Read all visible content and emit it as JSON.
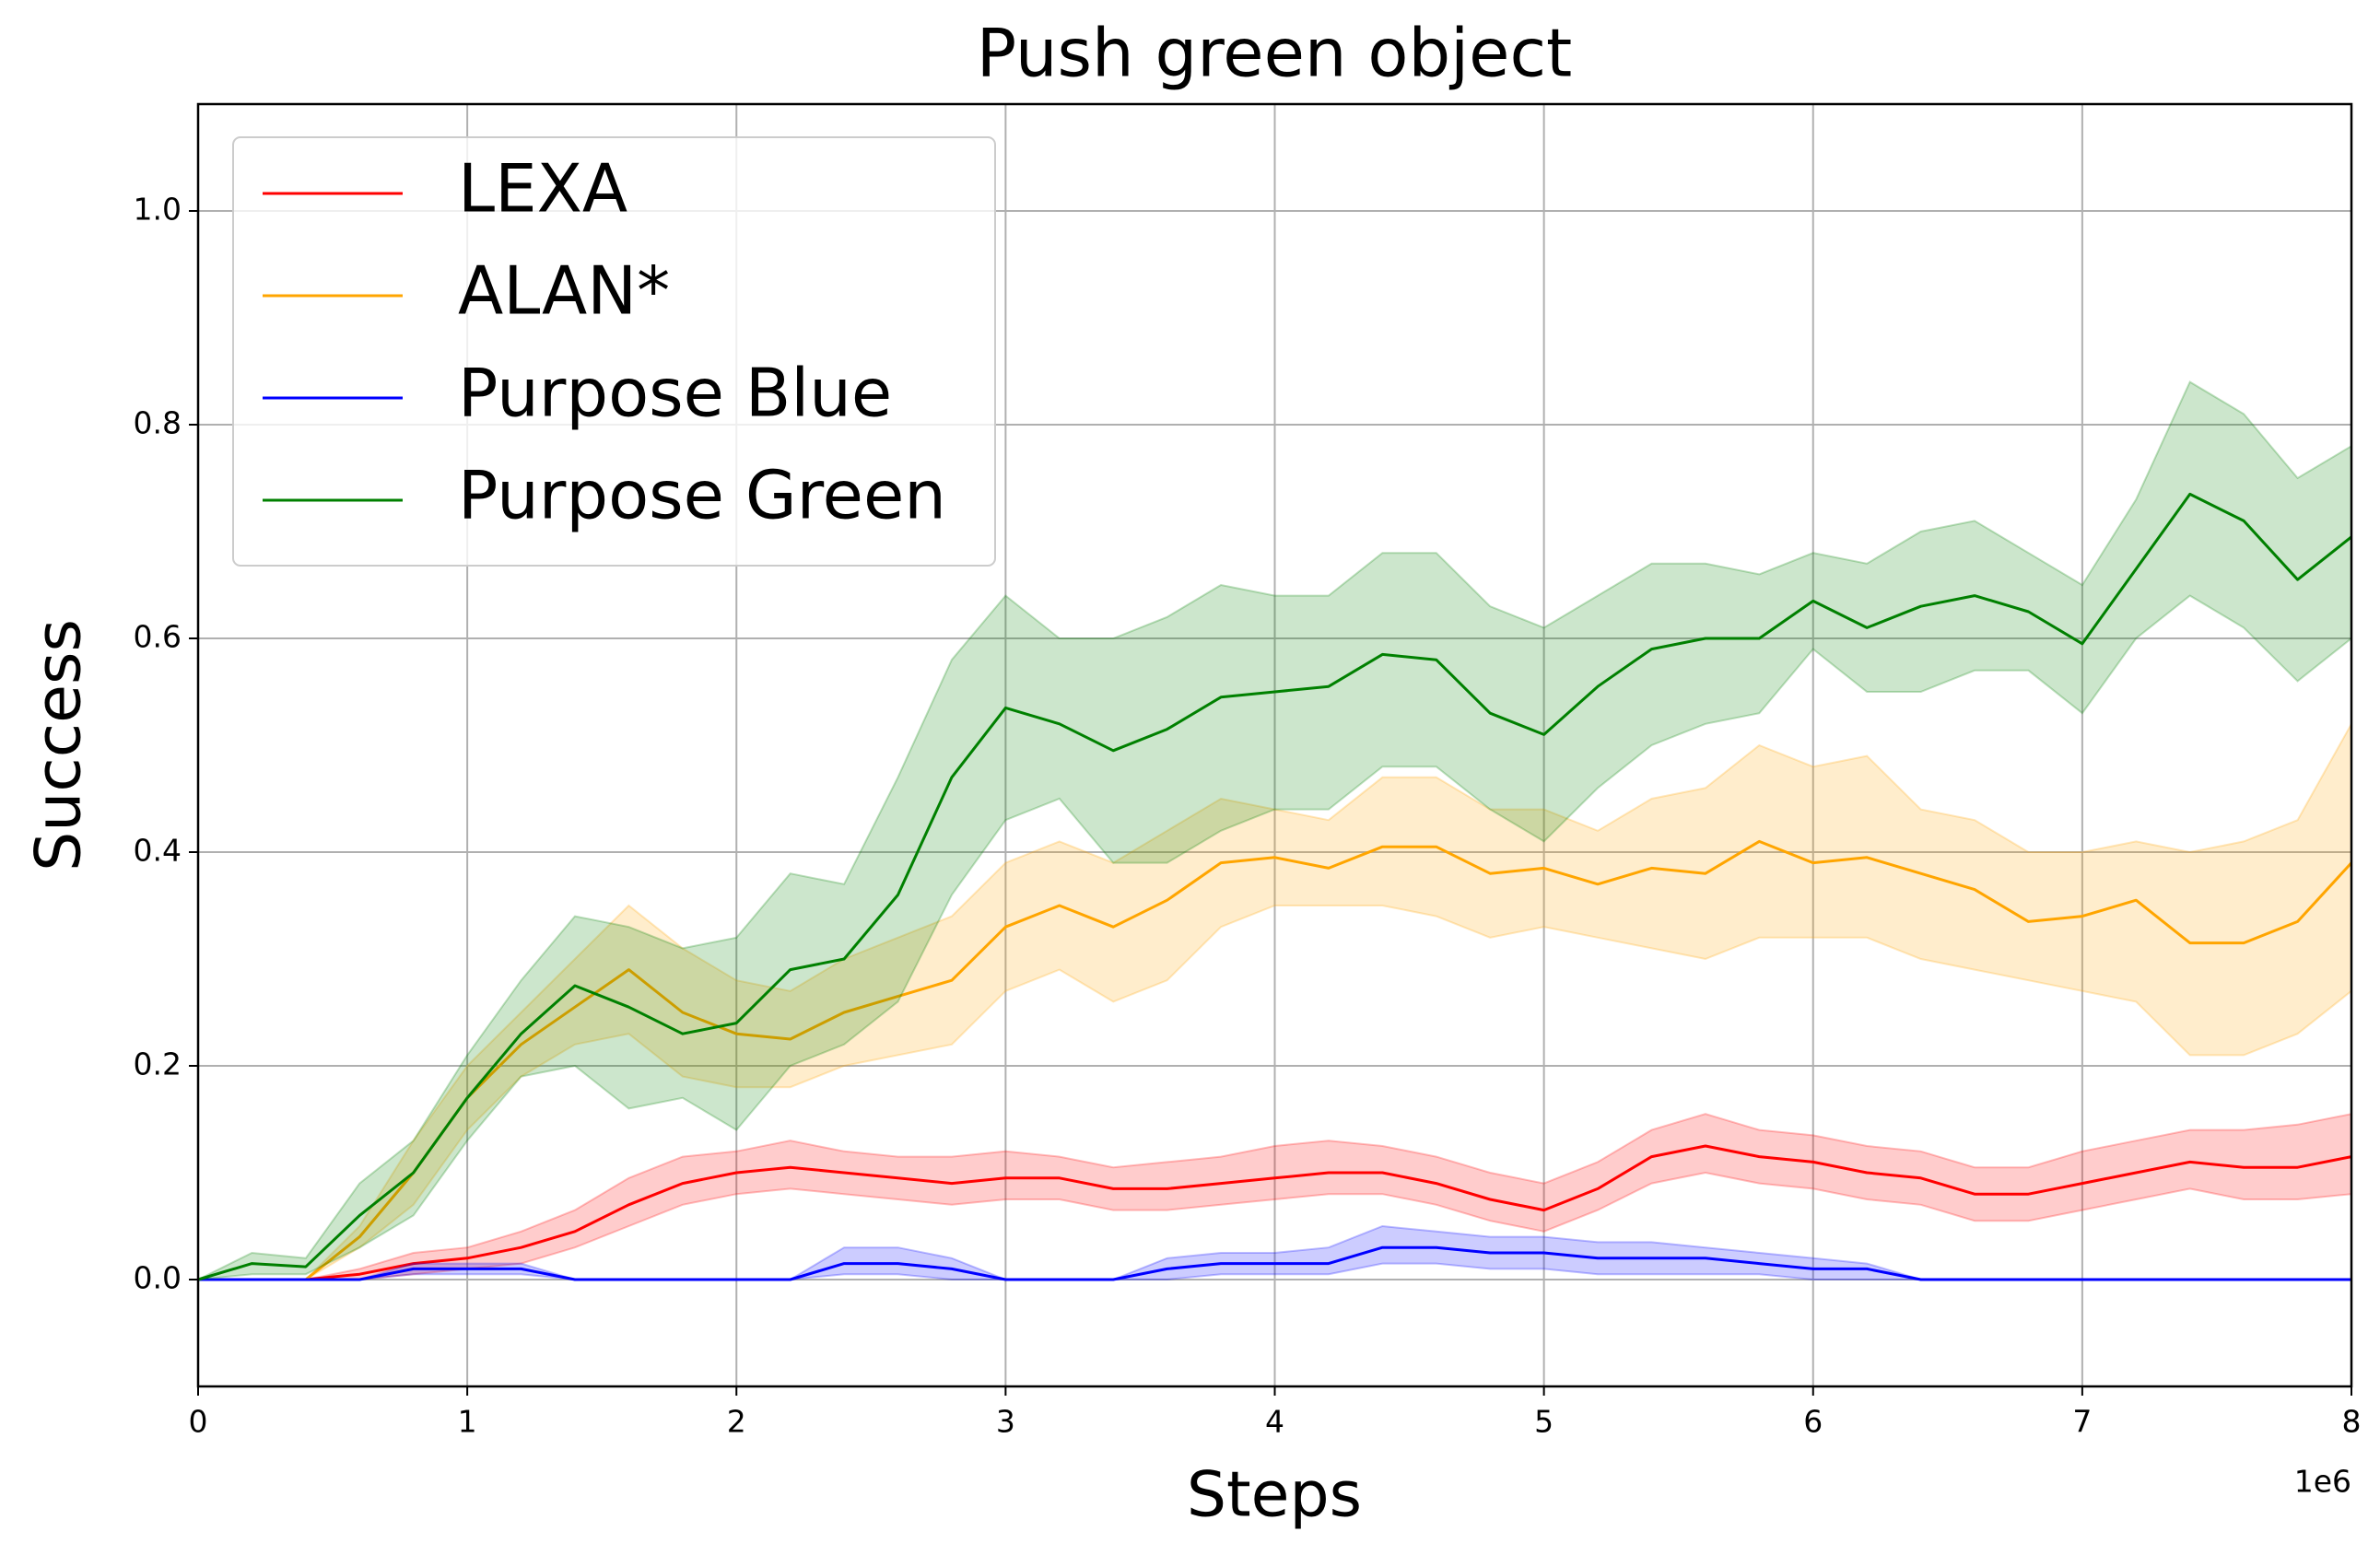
{
  "chart_data": {
    "type": "line",
    "title": "Push green object",
    "xlabel": "Steps",
    "ylabel": "Success",
    "x_offset_label": "1e6",
    "x": [
      0,
      0.2,
      0.4,
      0.6,
      0.8,
      1.0,
      1.2,
      1.4,
      1.6,
      1.8,
      2.0,
      2.2,
      2.4,
      2.6,
      2.8,
      3.0,
      3.2,
      3.4,
      3.6,
      3.8,
      4.0,
      4.2,
      4.4,
      4.6,
      4.8,
      5.0,
      5.2,
      5.4,
      5.6,
      5.8,
      6.0,
      6.2,
      6.4,
      6.6,
      6.8,
      7.0,
      7.2,
      7.4,
      7.6,
      7.8,
      8.0
    ],
    "xlim": [
      0,
      8
    ],
    "xticks": [
      0,
      1,
      2,
      3,
      4,
      5,
      6,
      7,
      8
    ],
    "ylim": [
      -0.1,
      1.1
    ],
    "yticks": [
      {
        "value": 0,
        "label": "0.0"
      },
      0.2,
      0.4,
      0.6,
      0.8,
      {
        "value": 1,
        "label": "1.0"
      }
    ],
    "grid": true,
    "legend": "upper left",
    "series": [
      {
        "name": "LEXA",
        "color": "#ff0000",
        "values": [
          0,
          0,
          0,
          0.005,
          0.015,
          0.02,
          0.03,
          0.045,
          0.07,
          0.09,
          0.1,
          0.105,
          0.1,
          0.095,
          0.09,
          0.095,
          0.095,
          0.085,
          0.085,
          0.09,
          0.095,
          0.1,
          0.1,
          0.09,
          0.075,
          0.065,
          0.085,
          0.115,
          0.125,
          0.115,
          0.11,
          0.1,
          0.095,
          0.08,
          0.08,
          0.09,
          0.1,
          0.11,
          0.105,
          0.105,
          0.115
        ],
        "lower": [
          0,
          0,
          0,
          0,
          0.005,
          0.01,
          0.015,
          0.03,
          0.05,
          0.07,
          0.08,
          0.085,
          0.08,
          0.075,
          0.07,
          0.075,
          0.075,
          0.065,
          0.065,
          0.07,
          0.075,
          0.08,
          0.08,
          0.07,
          0.055,
          0.045,
          0.065,
          0.09,
          0.1,
          0.09,
          0.085,
          0.075,
          0.07,
          0.055,
          0.055,
          0.065,
          0.075,
          0.085,
          0.075,
          0.075,
          0.08
        ],
        "upper": [
          0,
          0,
          0,
          0.01,
          0.025,
          0.03,
          0.045,
          0.065,
          0.095,
          0.115,
          0.12,
          0.13,
          0.12,
          0.115,
          0.115,
          0.12,
          0.115,
          0.105,
          0.11,
          0.115,
          0.125,
          0.13,
          0.125,
          0.115,
          0.1,
          0.09,
          0.11,
          0.14,
          0.155,
          0.14,
          0.135,
          0.125,
          0.12,
          0.105,
          0.105,
          0.12,
          0.13,
          0.14,
          0.14,
          0.145,
          0.155
        ]
      },
      {
        "name": "ALAN*",
        "color": "#ffa500",
        "values": [
          0,
          0,
          0,
          0.04,
          0.1,
          0.17,
          0.22,
          0.255,
          0.29,
          0.25,
          0.23,
          0.225,
          0.25,
          0.265,
          0.28,
          0.33,
          0.35,
          0.33,
          0.355,
          0.39,
          0.395,
          0.385,
          0.405,
          0.405,
          0.38,
          0.385,
          0.37,
          0.385,
          0.38,
          0.41,
          0.39,
          0.395,
          0.38,
          0.365,
          0.335,
          0.34,
          0.355,
          0.315,
          0.315,
          0.335,
          0.39
        ],
        "lower": [
          0,
          0,
          0,
          0.03,
          0.07,
          0.14,
          0.19,
          0.22,
          0.23,
          0.19,
          0.18,
          0.18,
          0.2,
          0.21,
          0.22,
          0.27,
          0.29,
          0.26,
          0.28,
          0.33,
          0.35,
          0.35,
          0.35,
          0.34,
          0.32,
          0.33,
          0.32,
          0.31,
          0.3,
          0.32,
          0.32,
          0.32,
          0.3,
          0.29,
          0.28,
          0.27,
          0.26,
          0.21,
          0.21,
          0.23,
          0.27
        ],
        "upper": [
          0,
          0,
          0,
          0.05,
          0.13,
          0.2,
          0.25,
          0.3,
          0.35,
          0.31,
          0.28,
          0.27,
          0.3,
          0.32,
          0.34,
          0.39,
          0.41,
          0.39,
          0.42,
          0.45,
          0.44,
          0.43,
          0.47,
          0.47,
          0.44,
          0.44,
          0.42,
          0.45,
          0.46,
          0.5,
          0.48,
          0.49,
          0.44,
          0.43,
          0.4,
          0.4,
          0.41,
          0.4,
          0.41,
          0.43,
          0.52
        ]
      },
      {
        "name": "Purpose Blue",
        "color": "#0000ff",
        "values": [
          0,
          0,
          0,
          0,
          0.01,
          0.01,
          0.01,
          0,
          0,
          0,
          0,
          0,
          0.015,
          0.015,
          0.01,
          0,
          0,
          0,
          0.01,
          0.015,
          0.015,
          0.015,
          0.03,
          0.03,
          0.025,
          0.025,
          0.02,
          0.02,
          0.02,
          0.015,
          0.01,
          0.01,
          0,
          0,
          0,
          0,
          0,
          0,
          0,
          0,
          0
        ],
        "lower": [
          0,
          0,
          0,
          0,
          0.005,
          0.005,
          0.005,
          0,
          0,
          0,
          0,
          0,
          0.005,
          0.005,
          0,
          0,
          0,
          0,
          0,
          0.005,
          0.005,
          0.005,
          0.015,
          0.015,
          0.01,
          0.01,
          0.005,
          0.005,
          0.005,
          0.005,
          0,
          0,
          0,
          0,
          0,
          0,
          0,
          0,
          0,
          0,
          0
        ],
        "upper": [
          0,
          0,
          0,
          0,
          0.015,
          0.015,
          0.015,
          0,
          0,
          0,
          0,
          0,
          0.03,
          0.03,
          0.02,
          0,
          0,
          0,
          0.02,
          0.025,
          0.025,
          0.03,
          0.05,
          0.045,
          0.04,
          0.04,
          0.035,
          0.035,
          0.03,
          0.025,
          0.02,
          0.015,
          0,
          0,
          0,
          0,
          0,
          0,
          0,
          0,
          0
        ]
      },
      {
        "name": "Purpose Green",
        "color": "#008000",
        "values": [
          0,
          0.015,
          0.012,
          0.06,
          0.1,
          0.17,
          0.23,
          0.275,
          0.255,
          0.23,
          0.24,
          0.29,
          0.3,
          0.36,
          0.47,
          0.535,
          0.52,
          0.495,
          0.515,
          0.545,
          0.55,
          0.555,
          0.585,
          0.58,
          0.53,
          0.51,
          0.555,
          0.59,
          0.6,
          0.6,
          0.635,
          0.61,
          0.63,
          0.64,
          0.625,
          0.595,
          0.665,
          0.735,
          0.71,
          0.655,
          0.695
        ],
        "lower": [
          0,
          0.005,
          0.005,
          0.03,
          0.06,
          0.13,
          0.19,
          0.2,
          0.16,
          0.17,
          0.14,
          0.2,
          0.22,
          0.26,
          0.36,
          0.43,
          0.45,
          0.39,
          0.39,
          0.42,
          0.44,
          0.44,
          0.48,
          0.48,
          0.44,
          0.41,
          0.46,
          0.5,
          0.52,
          0.53,
          0.59,
          0.55,
          0.55,
          0.57,
          0.57,
          0.53,
          0.6,
          0.64,
          0.61,
          0.56,
          0.6
        ],
        "upper": [
          0,
          0.025,
          0.02,
          0.09,
          0.13,
          0.21,
          0.28,
          0.34,
          0.33,
          0.31,
          0.32,
          0.38,
          0.37,
          0.47,
          0.58,
          0.64,
          0.6,
          0.6,
          0.62,
          0.65,
          0.64,
          0.64,
          0.68,
          0.68,
          0.63,
          0.61,
          0.64,
          0.67,
          0.67,
          0.66,
          0.68,
          0.67,
          0.7,
          0.71,
          0.68,
          0.65,
          0.73,
          0.84,
          0.81,
          0.75,
          0.78
        ]
      }
    ]
  }
}
